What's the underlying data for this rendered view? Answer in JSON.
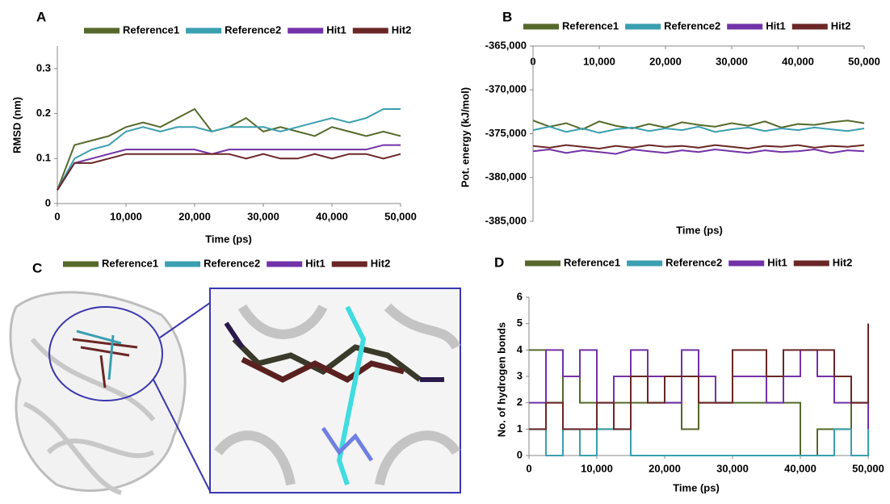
{
  "chart_data": [
    {
      "type": "line",
      "label": "A",
      "xlabel": "Time (ps)",
      "ylabel": "RMSD (nm)",
      "x": [
        0,
        2500,
        5000,
        7500,
        10000,
        12500,
        15000,
        17500,
        20000,
        22500,
        25000,
        27500,
        30000,
        32500,
        35000,
        37500,
        40000,
        42500,
        45000,
        47500,
        50000
      ],
      "xlim": [
        0,
        50000
      ],
      "xticks": [
        0,
        {
          "value": 10000,
          "label": "10,000"
        },
        {
          "value": 20000,
          "label": "20,000"
        },
        {
          "value": 30000,
          "label": "30,000"
        },
        {
          "value": 40000,
          "label": "40,000"
        },
        {
          "value": 50000,
          "label": "50,000"
        }
      ],
      "ylim": [
        0,
        0.35
      ],
      "yticks": [
        0,
        0.1,
        0.2,
        0.3
      ],
      "series": [
        {
          "name": "Reference1",
          "color": "#56692b",
          "values": [
            0.03,
            0.13,
            0.14,
            0.15,
            0.17,
            0.18,
            0.17,
            0.19,
            0.21,
            0.16,
            0.17,
            0.19,
            0.16,
            0.17,
            0.16,
            0.15,
            0.17,
            0.16,
            0.15,
            0.16,
            0.15
          ]
        },
        {
          "name": "Reference2",
          "color": "#3a9fb0",
          "values": [
            0.03,
            0.1,
            0.12,
            0.13,
            0.16,
            0.17,
            0.16,
            0.17,
            0.17,
            0.16,
            0.17,
            0.17,
            0.17,
            0.16,
            0.17,
            0.18,
            0.19,
            0.18,
            0.19,
            0.21,
            0.21
          ]
        },
        {
          "name": "Hit1",
          "color": "#7232a8",
          "values": [
            0.03,
            0.09,
            0.1,
            0.11,
            0.12,
            0.12,
            0.12,
            0.12,
            0.12,
            0.11,
            0.12,
            0.12,
            0.12,
            0.12,
            0.12,
            0.12,
            0.12,
            0.12,
            0.12,
            0.13,
            0.13
          ]
        },
        {
          "name": "Hit2",
          "color": "#6b2626",
          "values": [
            0.03,
            0.09,
            0.09,
            0.1,
            0.11,
            0.11,
            0.11,
            0.11,
            0.11,
            0.11,
            0.11,
            0.1,
            0.11,
            0.1,
            0.1,
            0.11,
            0.1,
            0.11,
            0.11,
            0.1,
            0.11
          ]
        }
      ]
    },
    {
      "type": "line",
      "label": "B",
      "xlabel": "Time (ps)",
      "ylabel": "Pot. energy (kJ/mol)",
      "xaxis": "top",
      "x": [
        0,
        2500,
        5000,
        7500,
        10000,
        12500,
        15000,
        17500,
        20000,
        22500,
        25000,
        27500,
        30000,
        32500,
        35000,
        37500,
        40000,
        42500,
        45000,
        47500,
        50000
      ],
      "xlim": [
        0,
        50000
      ],
      "xticks": [
        0,
        {
          "value": 10000,
          "label": "10,000"
        },
        {
          "value": 20000,
          "label": "20,000"
        },
        {
          "value": 30000,
          "label": "30,000"
        },
        {
          "value": 40000,
          "label": "40,000"
        },
        {
          "value": 50000,
          "label": "50,000"
        }
      ],
      "ylim": [
        -385000,
        -365000
      ],
      "yticks": [
        {
          "value": -365000,
          "label": "-365,000"
        },
        {
          "value": -370000,
          "label": "-370,000"
        },
        {
          "value": -375000,
          "label": "-375,000"
        },
        {
          "value": -380000,
          "label": "-380,000"
        },
        {
          "value": -385000,
          "label": "-385,000"
        }
      ],
      "series": [
        {
          "name": "Reference1",
          "color": "#56692b",
          "values": [
            -373500,
            -374200,
            -373800,
            -374500,
            -373600,
            -374100,
            -374400,
            -373900,
            -374300,
            -373700,
            -374000,
            -374200,
            -373800,
            -374100,
            -373600,
            -374300,
            -373900,
            -374000,
            -373700,
            -373500,
            -373800
          ]
        },
        {
          "name": "Reference2",
          "color": "#3a9fb0",
          "values": [
            -374600,
            -374200,
            -374800,
            -374400,
            -374900,
            -374500,
            -374300,
            -374700,
            -374400,
            -374600,
            -374200,
            -374800,
            -374500,
            -374300,
            -374700,
            -374400,
            -374600,
            -374300,
            -374500,
            -374700,
            -374400
          ]
        },
        {
          "name": "Hit1",
          "color": "#7232a8",
          "values": [
            -377000,
            -376800,
            -377200,
            -376900,
            -377100,
            -377300,
            -376800,
            -377000,
            -377200,
            -376900,
            -377100,
            -376800,
            -377000,
            -377200,
            -376900,
            -377100,
            -377000,
            -376800,
            -377200,
            -376900,
            -377000
          ]
        },
        {
          "name": "Hit2",
          "color": "#6b2626",
          "values": [
            -376400,
            -376600,
            -376300,
            -376500,
            -376700,
            -376400,
            -376600,
            -376300,
            -376500,
            -376400,
            -376600,
            -376300,
            -376500,
            -376700,
            -376400,
            -376500,
            -376300,
            -376600,
            -376400,
            -376500,
            -376300
          ]
        }
      ]
    },
    {
      "type": "image",
      "label": "C",
      "series": [
        {
          "name": "Reference1",
          "color": "#56692b"
        },
        {
          "name": "Reference2",
          "color": "#3a9fb0"
        },
        {
          "name": "Hit1",
          "color": "#7232a8"
        },
        {
          "name": "Hit2",
          "color": "#6b2626"
        }
      ]
    },
    {
      "type": "line",
      "label": "D",
      "xlabel": "Time (ps)",
      "ylabel": "No. of hydrogen bonds",
      "step": true,
      "x": [
        0,
        2500,
        5000,
        7500,
        10000,
        12500,
        15000,
        17500,
        20000,
        22500,
        25000,
        27500,
        30000,
        32500,
        35000,
        37500,
        40000,
        42500,
        45000,
        47500,
        50000
      ],
      "xlim": [
        0,
        50000
      ],
      "xticks": [
        0,
        {
          "value": 10000,
          "label": "10,000"
        },
        {
          "value": 20000,
          "label": "20,000"
        },
        {
          "value": 30000,
          "label": "30,000"
        },
        {
          "value": 40000,
          "label": "40,000"
        },
        {
          "value": 50000,
          "label": "50,000"
        }
      ],
      "ylim": [
        0,
        6
      ],
      "yticks": [
        0,
        1,
        2,
        3,
        4,
        5,
        6
      ],
      "series": [
        {
          "name": "Reference1",
          "color": "#56692b",
          "values": [
            4,
            2,
            3,
            2,
            1,
            2,
            2,
            2,
            2,
            1,
            2,
            2,
            2,
            2,
            2,
            2,
            0,
            1,
            1,
            2,
            2
          ]
        },
        {
          "name": "Reference2",
          "color": "#3a9fb0",
          "values": [
            1,
            0,
            1,
            0,
            1,
            1,
            0,
            0,
            0,
            0,
            0,
            0,
            0,
            0,
            0,
            0,
            0,
            0,
            1,
            0,
            1
          ]
        },
        {
          "name": "Hit1",
          "color": "#7232a8",
          "values": [
            2,
            4,
            3,
            4,
            2,
            3,
            4,
            3,
            2,
            4,
            3,
            2,
            3,
            3,
            2,
            3,
            4,
            3,
            2,
            2,
            1
          ]
        },
        {
          "name": "Hit2",
          "color": "#6b2626",
          "values": [
            1,
            2,
            1,
            1,
            2,
            1,
            3,
            2,
            3,
            3,
            2,
            2,
            4,
            4,
            3,
            4,
            4,
            4,
            3,
            2,
            5
          ]
        }
      ]
    }
  ]
}
